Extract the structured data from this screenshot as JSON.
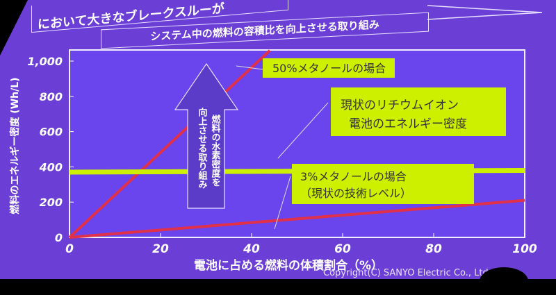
{
  "slide": {
    "top_banner_text": "において大きなブレークスルーが",
    "arrow_banner_text": "システム中の燃料の容積比を向上させる取り組み",
    "vertical_arrow_text": [
      "燃料の水素密度を",
      "向上させる取り組み"
    ],
    "copyright": "Copyright(C) SANYO Electric Co., Ltd. 20"
  },
  "chart_data": {
    "type": "line",
    "xlabel": "電池に占める燃料の体積割合（%）",
    "ylabel": "燃料のエネルギー密度 (Wh/L)",
    "xlim": [
      0,
      100
    ],
    "ylim": [
      0,
      1000
    ],
    "x_ticks": [
      "0",
      "20",
      "40",
      "60",
      "80",
      "100"
    ],
    "y_ticks": [
      "0",
      "200",
      "400",
      "600",
      "800",
      "1,000"
    ],
    "grid": false,
    "series": [
      {
        "name": "50%メタノールの場合",
        "x": [
          0,
          44
        ],
        "y": [
          0,
          1060
        ],
        "color": "#e0304a"
      },
      {
        "name": "現状のリチウムイオン電池のエネルギー密度",
        "x": [
          0,
          100
        ],
        "y": [
          370,
          380
        ],
        "color": "#ccf000"
      },
      {
        "name": "3%メタノールの場合（現状の技術レベル）",
        "x": [
          0,
          100
        ],
        "y": [
          0,
          210
        ],
        "color": "#e0304a"
      }
    ],
    "annotations": [
      {
        "lines": [
          "50%メタノールの場合"
        ]
      },
      {
        "lines": [
          "現状のリチウムイオン",
          "電池のエネルギー密度"
        ]
      },
      {
        "lines": [
          "3%メタノールの場合",
          "（現状の技術レベル）"
        ]
      }
    ]
  }
}
